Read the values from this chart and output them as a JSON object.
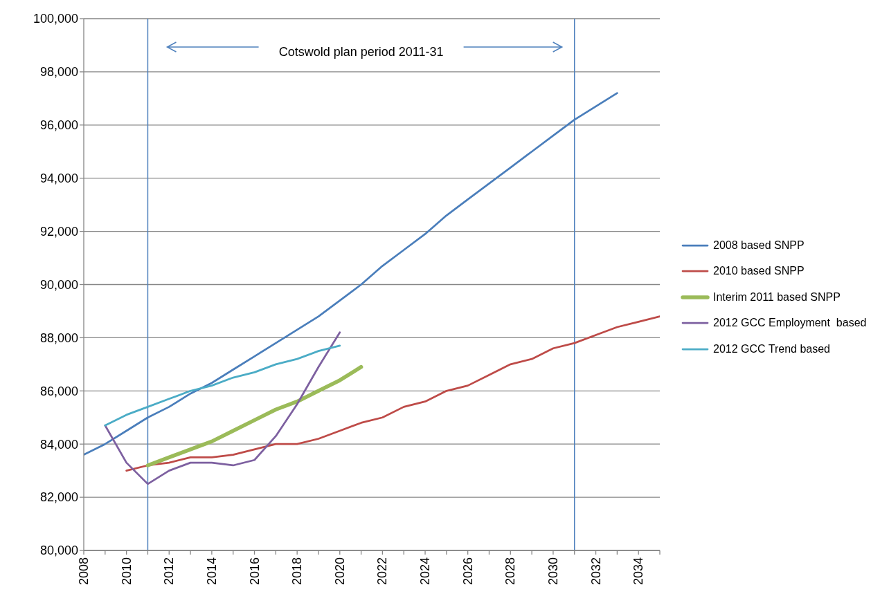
{
  "chart_data": {
    "type": "line",
    "x": [
      2008,
      2009,
      2010,
      2011,
      2012,
      2013,
      2014,
      2015,
      2016,
      2017,
      2018,
      2019,
      2020,
      2021,
      2022,
      2023,
      2024,
      2025,
      2026,
      2027,
      2028,
      2029,
      2030,
      2031,
      2032,
      2033,
      2034,
      2035
    ],
    "series": [
      {
        "name": "2008 based SNPP",
        "color": "#4a7ebb",
        "values": [
          83600,
          84000,
          84500,
          85000,
          85400,
          85900,
          86300,
          86800,
          87300,
          87800,
          88300,
          88800,
          89400,
          90000,
          90700,
          91300,
          91900,
          92600,
          93200,
          93800,
          94400,
          95000,
          95600,
          96200,
          96700,
          97200,
          null,
          null
        ]
      },
      {
        "name": "2010 based SNPP",
        "color": "#be4b48",
        "values": [
          null,
          null,
          83000,
          83200,
          83300,
          83500,
          83500,
          83600,
          83800,
          84000,
          84000,
          84200,
          84500,
          84800,
          85000,
          85400,
          85600,
          86000,
          86200,
          86600,
          87000,
          87200,
          87600,
          87800,
          88100,
          88400,
          88600,
          88800
        ]
      },
      {
        "name": "Interim 2011 based SNPP",
        "color": "#9bbb59",
        "values": [
          null,
          null,
          null,
          83200,
          83500,
          83800,
          84100,
          84500,
          84900,
          85300,
          85600,
          86000,
          86400,
          86900,
          null,
          null,
          null,
          null,
          null,
          null,
          null,
          null,
          null,
          null,
          null,
          null,
          null,
          null
        ]
      },
      {
        "name": "2012 GCC Employment  based",
        "color": "#7d60a0",
        "values": [
          null,
          84700,
          83300,
          82500,
          83000,
          83300,
          83300,
          83200,
          83400,
          84300,
          85500,
          86900,
          88200,
          null,
          null,
          null,
          null,
          null,
          null,
          null,
          null,
          null,
          null,
          null,
          null,
          null,
          null,
          null
        ]
      },
      {
        "name": "2012 GCC Trend based",
        "color": "#4bacc6",
        "values": [
          null,
          84700,
          85100,
          85400,
          85700,
          86000,
          86200,
          86500,
          86700,
          87000,
          87200,
          87500,
          87700,
          null,
          null,
          null,
          null,
          null,
          null,
          null,
          null,
          null,
          null,
          null,
          null,
          null,
          null,
          null
        ]
      }
    ],
    "xlim": [
      2008,
      2035
    ],
    "xticks": [
      2008,
      {
        "value": 2009,
        "label": null
      },
      2010,
      {
        "value": 2011,
        "label": null
      },
      2012,
      {
        "value": 2013,
        "label": null
      },
      2014,
      {
        "value": 2015,
        "label": null
      },
      2016,
      {
        "value": 2017,
        "label": null
      },
      2018,
      {
        "value": 2019,
        "label": null
      },
      2020,
      {
        "value": 2021,
        "label": null
      },
      2022,
      {
        "value": 2023,
        "label": null
      },
      2024,
      {
        "value": 2025,
        "label": null
      },
      2026,
      {
        "value": 2027,
        "label": null
      },
      2028,
      {
        "value": 2029,
        "label": null
      },
      2030,
      {
        "value": 2031,
        "label": null
      },
      2032,
      {
        "value": 2033,
        "label": null
      },
      2034,
      {
        "value": 2035,
        "label": null
      }
    ],
    "ylim": [
      80000,
      100000
    ],
    "yticks": [
      {
        "value": 80000,
        "label": "80,000"
      },
      {
        "value": 82000,
        "label": "82,000"
      },
      {
        "value": 84000,
        "label": "84,000"
      },
      {
        "value": 86000,
        "label": "86,000"
      },
      {
        "value": 88000,
        "label": "88,000"
      },
      {
        "value": 90000,
        "label": "90,000"
      },
      {
        "value": 92000,
        "label": "92,000"
      },
      {
        "value": 94000,
        "label": "94,000"
      },
      {
        "value": 96000,
        "label": "96,000"
      },
      {
        "value": 98000,
        "label": "98,000"
      },
      {
        "value": 100000,
        "label": "100,000"
      }
    ],
    "ref_lines": [
      {
        "axis": "x",
        "value": 2011,
        "color": "#4f81bd"
      },
      {
        "axis": "x",
        "value": 2031,
        "color": "#4f81bd"
      }
    ],
    "annotations": [
      "Cotswold plan period 2011-31"
    ],
    "grid": "y",
    "legend": "right",
    "marker": "none"
  }
}
